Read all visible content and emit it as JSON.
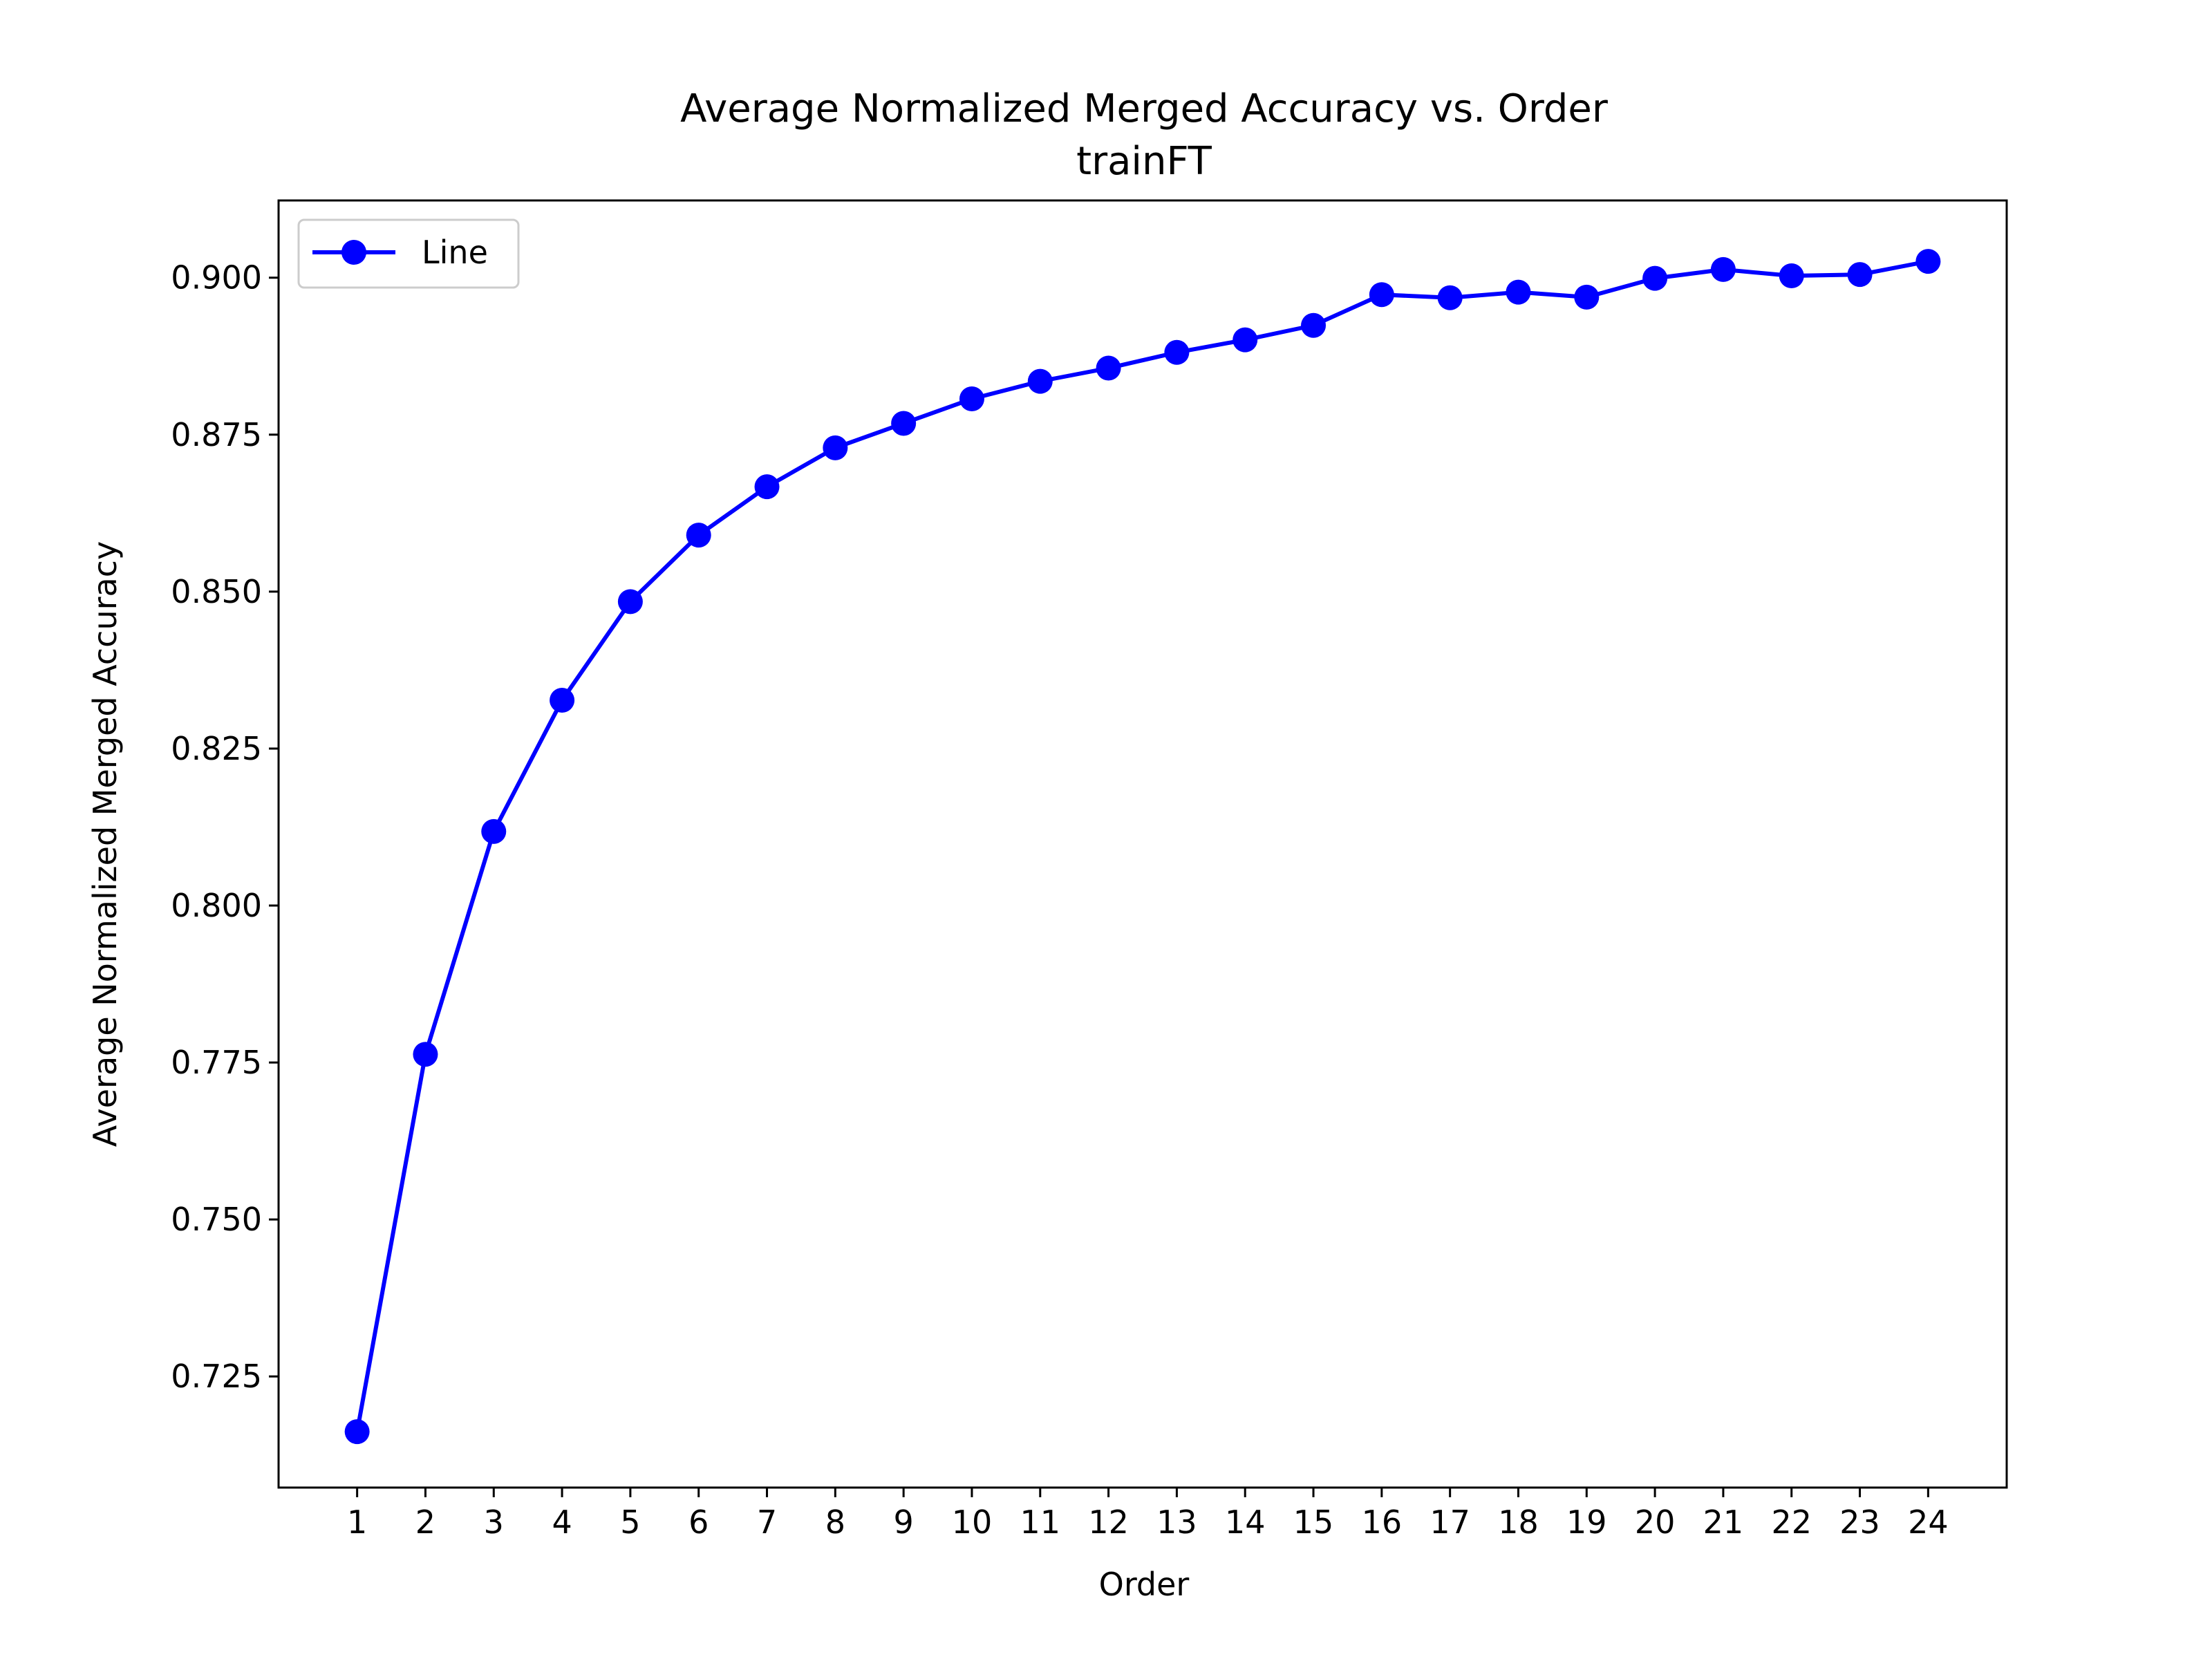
{
  "chart_data": {
    "type": "line",
    "title": "Average Normalized Merged Accuracy vs. Order",
    "subtitle": "trainFT",
    "xlabel": "Order",
    "ylabel": "Average Normalized Merged Accuracy",
    "x": [
      1,
      2,
      3,
      4,
      5,
      6,
      7,
      8,
      9,
      10,
      11,
      12,
      13,
      14,
      15,
      16,
      17,
      18,
      19,
      20,
      21,
      22,
      23,
      24
    ],
    "x_tick_labels": [
      "1",
      "2",
      "3",
      "4",
      "5",
      "6",
      "7",
      "8",
      "9",
      "10",
      "11",
      "12",
      "13",
      "14",
      "15",
      "16",
      "17",
      "18",
      "19",
      "20",
      "21",
      "22",
      "23",
      "24"
    ],
    "y_ticks": [
      0.725,
      0.75,
      0.775,
      0.8,
      0.825,
      0.85,
      0.875,
      0.9
    ],
    "y_tick_labels": [
      "0.725",
      "0.750",
      "0.775",
      "0.800",
      "0.825",
      "0.850",
      "0.875",
      "0.900"
    ],
    "xlim": [
      -0.15,
      25.15
    ],
    "ylim": [
      0.7073,
      0.9123
    ],
    "grid": false,
    "legend": {
      "position": "top-left"
    },
    "series": [
      {
        "name": "Line",
        "color": "#0000ff",
        "marker": "circle",
        "values": [
          0.7162,
          0.7763,
          0.8118,
          0.8327,
          0.8484,
          0.859,
          0.8667,
          0.8729,
          0.8768,
          0.8807,
          0.8835,
          0.8856,
          0.8881,
          0.8901,
          0.8924,
          0.8973,
          0.8968,
          0.8977,
          0.8969,
          0.8999,
          0.9013,
          0.9003,
          0.9005,
          0.9026
        ]
      }
    ]
  }
}
